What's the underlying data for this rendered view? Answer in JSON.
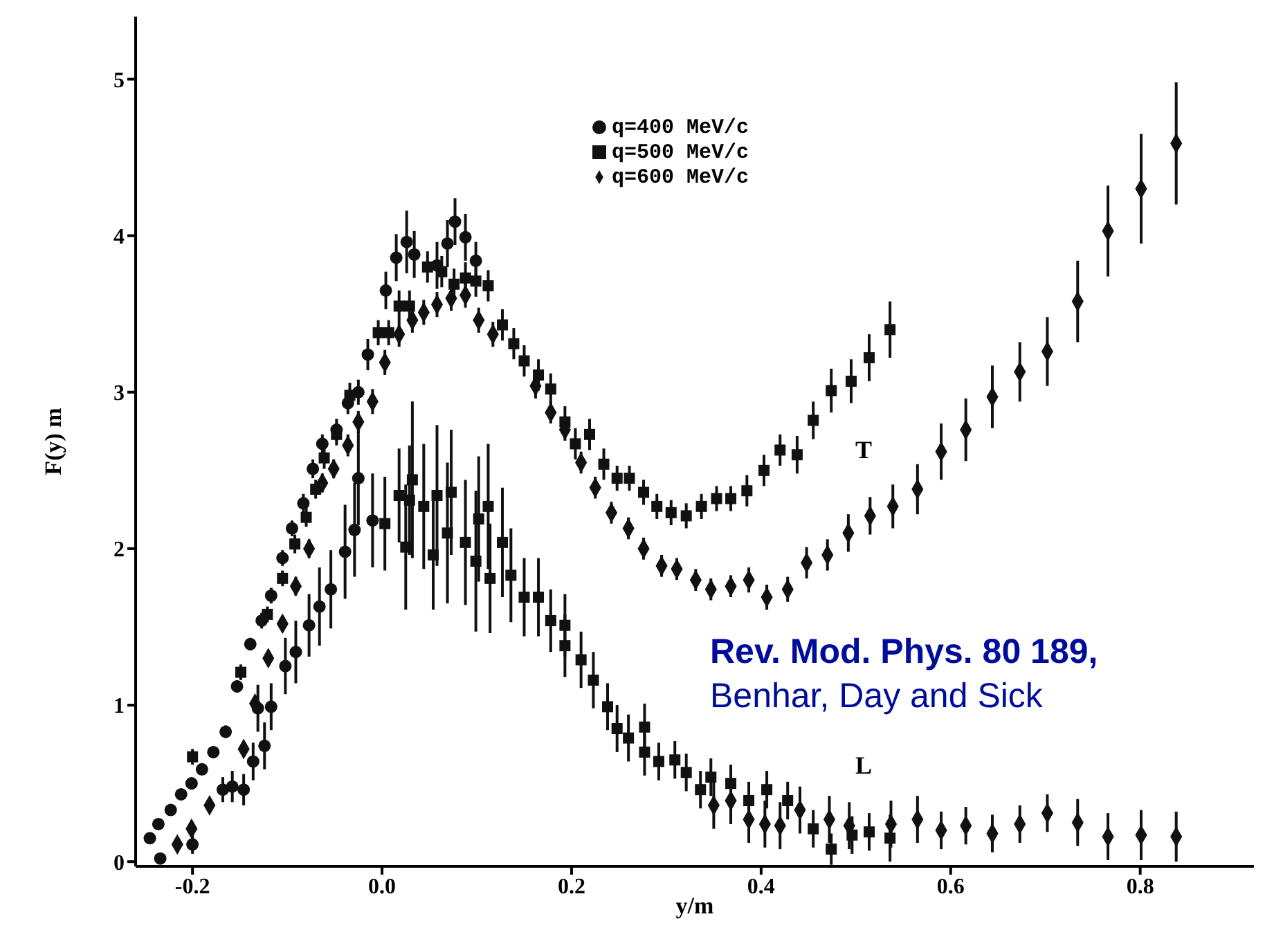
{
  "chart_data": {
    "type": "scatter",
    "xlabel": "y/m",
    "ylabel": "F(y) m",
    "xlim": [
      -0.26,
      0.92
    ],
    "ylim": [
      -0.03,
      5.4
    ],
    "xticks": [
      -0.2,
      {
        "value": 0,
        "label": "0.0"
      },
      0.2,
      0.4,
      0.6,
      0.8
    ],
    "yticks": [
      0,
      1,
      2,
      3,
      4,
      5
    ],
    "grid": false,
    "legend": "top",
    "annotations": [
      "T",
      "L",
      "Rev. Mod. Phys. 80 189,",
      "Benhar, Day and Sick"
    ],
    "series": [
      {
        "name": "q=400 MeV/c",
        "color": "#111111",
        "marker": "circle",
        "x": [
          -0.245,
          -0.236,
          -0.223,
          -0.212,
          -0.201,
          -0.19,
          -0.178,
          -0.165,
          -0.153,
          -0.139,
          -0.127,
          -0.117,
          -0.105,
          -0.095,
          -0.083,
          -0.073,
          -0.063,
          -0.048,
          -0.036,
          -0.025,
          -0.015,
          0.004,
          0.015,
          0.026,
          0.034,
          0.058,
          0.069,
          0.077,
          0.088,
          0.099,
          -0.234,
          -0.2,
          -0.168,
          -0.158,
          -0.146,
          -0.136,
          -0.131,
          -0.124,
          -0.117,
          -0.102,
          -0.091,
          -0.077,
          -0.066,
          -0.054,
          -0.039,
          -0.029,
          -0.025,
          -0.01
        ],
        "values": [
          0.15,
          0.24,
          0.33,
          0.43,
          0.5,
          0.59,
          0.7,
          0.83,
          1.12,
          1.39,
          1.54,
          1.7,
          1.94,
          2.13,
          2.29,
          2.51,
          2.67,
          2.76,
          2.93,
          3.0,
          3.24,
          3.65,
          3.86,
          3.96,
          3.88,
          3.81,
          3.95,
          4.09,
          3.99,
          3.84,
          0.02,
          0.11,
          0.46,
          0.48,
          0.46,
          0.64,
          0.98,
          0.74,
          0.99,
          1.25,
          1.34,
          1.51,
          1.63,
          1.74,
          1.98,
          2.12,
          2.45,
          2.18
        ],
        "errors": [
          0.03,
          0.03,
          0.03,
          0.03,
          0.03,
          0.03,
          0.03,
          0.04,
          0.04,
          0.04,
          0.05,
          0.05,
          0.05,
          0.05,
          0.06,
          0.06,
          0.06,
          0.07,
          0.07,
          0.08,
          0.1,
          0.12,
          0.15,
          0.2,
          0.15,
          0.15,
          0.15,
          0.15,
          0.15,
          0.12,
          null,
          0.06,
          0.08,
          0.1,
          0.1,
          0.12,
          0.15,
          0.15,
          0.15,
          0.18,
          0.2,
          0.2,
          0.25,
          0.25,
          0.3,
          0.3,
          0.3,
          0.3
        ]
      },
      {
        "name": "q=500 MeV/c",
        "color": "#111111",
        "marker": "square",
        "x": [
          -0.2,
          -0.149,
          -0.121,
          -0.105,
          -0.092,
          -0.08,
          -0.07,
          -0.061,
          -0.048,
          -0.034,
          -0.004,
          0.007,
          0.018,
          0.029,
          0.048,
          0.063,
          0.076,
          0.088,
          0.099,
          0.112,
          0.127,
          0.139,
          0.15,
          0.165,
          0.178,
          0.193,
          0.204,
          0.219,
          0.234,
          0.248,
          0.261,
          0.276,
          0.29,
          0.305,
          0.321,
          0.337,
          0.353,
          0.368,
          0.385,
          0.403,
          0.42,
          0.438,
          0.455,
          0.474,
          0.495,
          0.514,
          0.536,
          0.003,
          0.018,
          0.025,
          0.029,
          0.032,
          0.044,
          0.054,
          0.058,
          0.069,
          0.073,
          0.088,
          0.099,
          0.102,
          0.112,
          0.114,
          0.127,
          0.136,
          0.15,
          0.165,
          0.178,
          0.193,
          0.193,
          0.21,
          0.223,
          0.238,
          0.248,
          0.26,
          0.277,
          0.277,
          0.292,
          0.309,
          0.321,
          0.336,
          0.347,
          0.368,
          0.387,
          0.406,
          0.428,
          0.455,
          0.474,
          0.496,
          0.514,
          0.536
        ],
        "values": [
          0.67,
          1.21,
          1.58,
          1.81,
          2.03,
          2.2,
          2.38,
          2.58,
          2.73,
          2.98,
          3.38,
          3.38,
          3.55,
          3.55,
          3.8,
          3.77,
          3.69,
          3.73,
          3.71,
          3.68,
          3.43,
          3.31,
          3.2,
          3.11,
          3.02,
          2.81,
          2.67,
          2.73,
          2.54,
          2.45,
          2.45,
          2.36,
          2.27,
          2.23,
          2.21,
          2.27,
          2.32,
          2.32,
          2.37,
          2.5,
          2.63,
          2.6,
          2.82,
          3.01,
          3.07,
          3.22,
          3.4,
          2.16,
          2.34,
          2.01,
          2.31,
          2.44,
          2.27,
          1.96,
          2.34,
          2.1,
          2.36,
          2.04,
          1.92,
          2.19,
          2.27,
          1.81,
          2.04,
          1.83,
          1.69,
          1.69,
          1.54,
          1.51,
          1.38,
          1.29,
          1.16,
          0.99,
          0.85,
          0.79,
          0.86,
          0.7,
          0.64,
          0.65,
          0.57,
          0.46,
          0.54,
          0.5,
          0.39,
          0.46,
          0.39,
          0.21,
          0.08,
          0.17,
          0.19,
          0.15
        ],
        "errors": [
          0.05,
          0.05,
          0.05,
          0.05,
          0.06,
          0.06,
          0.06,
          0.07,
          0.07,
          0.08,
          0.08,
          0.08,
          0.1,
          0.1,
          0.1,
          0.1,
          0.1,
          0.1,
          0.1,
          0.1,
          0.1,
          0.1,
          0.1,
          0.1,
          0.1,
          0.1,
          0.1,
          0.1,
          0.1,
          0.08,
          0.08,
          0.08,
          0.08,
          0.08,
          0.08,
          0.08,
          0.08,
          0.08,
          0.1,
          0.1,
          0.1,
          0.12,
          0.12,
          0.14,
          0.14,
          0.15,
          0.18,
          0.3,
          0.3,
          0.4,
          0.35,
          0.5,
          0.4,
          0.35,
          0.45,
          0.45,
          0.4,
          0.4,
          0.45,
          0.4,
          0.4,
          0.35,
          0.35,
          0.3,
          0.25,
          0.25,
          0.2,
          0.2,
          0.2,
          0.18,
          0.18,
          0.15,
          0.15,
          0.15,
          0.15,
          0.15,
          0.12,
          0.12,
          0.12,
          0.12,
          0.12,
          0.12,
          0.12,
          0.12,
          0.12,
          0.12,
          0.1,
          0.12,
          0.12,
          0.15
        ]
      },
      {
        "name": "q=600 MeV/c",
        "color": "#111111",
        "marker": "diamond",
        "x": [
          -0.216,
          -0.201,
          -0.182,
          -0.146,
          -0.134,
          -0.12,
          -0.105,
          -0.091,
          -0.077,
          -0.063,
          -0.051,
          -0.036,
          -0.025,
          -0.01,
          0.003,
          0.018,
          0.032,
          0.044,
          0.058,
          0.073,
          0.088,
          0.102,
          0.117,
          0.162,
          0.178,
          0.193,
          0.21,
          0.225,
          0.242,
          0.26,
          0.276,
          0.295,
          0.311,
          0.331,
          0.347,
          0.368,
          0.387,
          0.406,
          0.428,
          0.448,
          0.47,
          0.492,
          0.515,
          0.539,
          0.565,
          0.59,
          0.616,
          0.644,
          0.673,
          0.702,
          0.734,
          0.766,
          0.801,
          0.838,
          0.35,
          0.368,
          0.387,
          0.404,
          0.42,
          0.441,
          0.472,
          0.493,
          0.537,
          0.565,
          0.59,
          0.616,
          0.644,
          0.673,
          0.702,
          0.734,
          0.766,
          0.801,
          0.838
        ],
        "values": [
          0.11,
          0.21,
          0.36,
          0.72,
          1.01,
          1.3,
          1.52,
          1.76,
          2.0,
          2.42,
          2.51,
          2.66,
          2.81,
          2.94,
          3.19,
          3.37,
          3.46,
          3.51,
          3.56,
          3.6,
          3.62,
          3.46,
          3.37,
          3.04,
          2.87,
          2.76,
          2.55,
          2.39,
          2.23,
          2.13,
          2.0,
          1.89,
          1.87,
          1.8,
          1.74,
          1.76,
          1.8,
          1.69,
          1.74,
          1.91,
          1.96,
          2.1,
          2.21,
          2.27,
          2.38,
          2.62,
          2.76,
          2.97,
          3.13,
          3.26,
          3.58,
          4.03,
          4.3,
          4.59,
          0.36,
          0.39,
          0.27,
          0.24,
          0.23,
          0.33,
          0.27,
          0.23,
          0.24,
          0.27,
          0.2,
          0.23,
          0.18,
          0.24,
          0.31,
          0.25,
          0.16,
          0.17,
          0.16
        ],
        "errors": [
          0.04,
          0.04,
          0.04,
          0.05,
          0.05,
          0.05,
          0.05,
          0.06,
          0.06,
          0.06,
          0.06,
          0.07,
          0.07,
          0.08,
          0.08,
          0.08,
          0.08,
          0.08,
          0.08,
          0.08,
          0.08,
          0.08,
          0.08,
          0.08,
          0.07,
          0.07,
          0.07,
          0.07,
          0.07,
          0.07,
          0.07,
          0.07,
          0.07,
          0.07,
          0.07,
          0.07,
          0.08,
          0.08,
          0.08,
          0.1,
          0.1,
          0.12,
          0.12,
          0.14,
          0.16,
          0.18,
          0.2,
          0.2,
          0.19,
          0.22,
          0.26,
          0.29,
          0.35,
          0.39,
          0.15,
          0.15,
          0.15,
          0.15,
          0.15,
          0.15,
          0.15,
          0.15,
          0.15,
          0.15,
          0.12,
          0.12,
          0.12,
          0.12,
          0.12,
          0.15,
          0.15,
          0.16,
          0.16
        ]
      }
    ]
  }
}
